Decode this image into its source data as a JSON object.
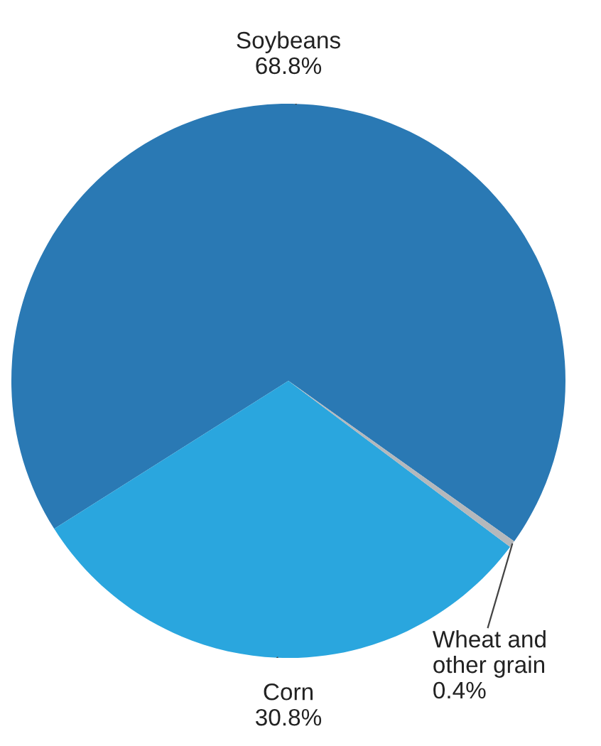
{
  "chart_data": {
    "type": "pie",
    "categories": [
      "Soybeans",
      "Corn",
      "Wheat and\nother grain"
    ],
    "values": [
      68.8,
      30.8,
      0.4
    ],
    "value_labels": [
      "68.8%",
      "30.8%",
      "0.4%"
    ],
    "colors": [
      "#2a79b4",
      "#2aa6de",
      "#b4b8bc"
    ]
  }
}
